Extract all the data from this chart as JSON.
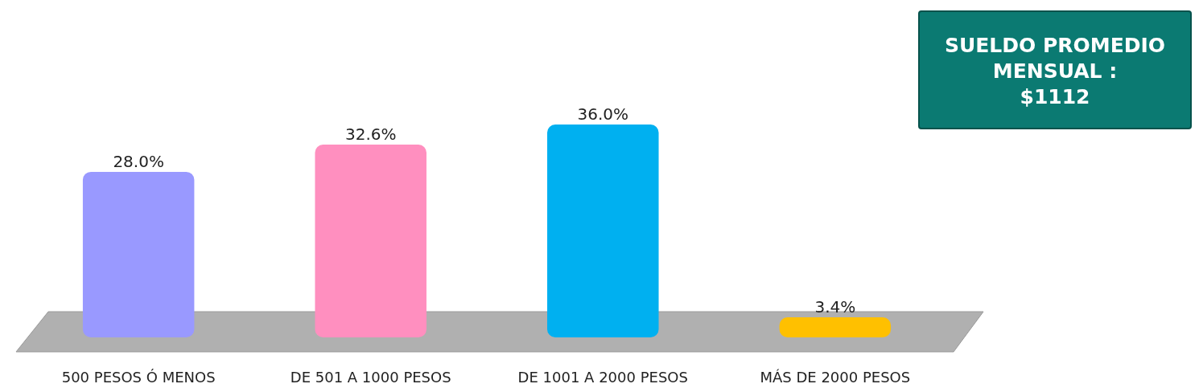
{
  "chart_data": {
    "type": "bar",
    "categories": [
      "500 PESOS Ó MENOS",
      "DE 501 A 1000 PESOS",
      "DE 1001 A 2000 PESOS",
      "MÁS DE 2000 PESOS"
    ],
    "values": [
      28.0,
      32.6,
      36.0,
      3.4
    ],
    "value_labels": [
      "28.0%",
      "32.6%",
      "36.0%",
      "3.4%"
    ],
    "colors": [
      "#9999ff",
      "#ff8fbf",
      "#00b0f0",
      "#ffc000"
    ],
    "tick_labels": "x",
    "annotations": [
      "SUELDO PROMEDIO\nMENSUAL :\n$1112"
    ]
  }
}
